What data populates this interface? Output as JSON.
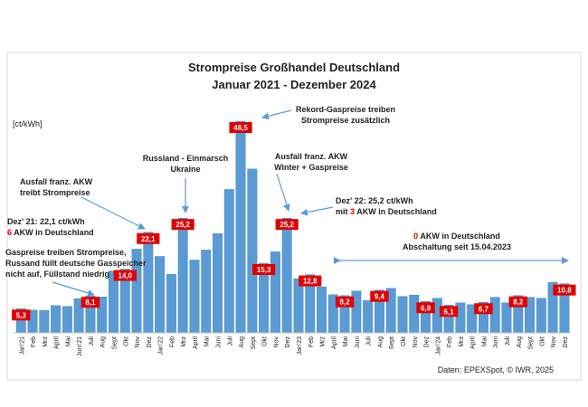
{
  "chart_data": {
    "type": "bar",
    "title": "Strompreise Großhandel Deutschland",
    "subtitle": "Januar 2021 - Dezember 2024",
    "ylabel": "[ct/kWh]",
    "xlabel": "",
    "ylim": [
      0,
      50
    ],
    "grid": false,
    "source": "Daten: EPEXSpot, © IWR, 2025",
    "categories": [
      "Jan'21",
      "Feb",
      "Mrz",
      "April",
      "Mai",
      "Juni'21",
      "Juli",
      "Aug",
      "Sept",
      "Okt",
      "Nov",
      "Dez",
      "Jan'22",
      "Feb",
      "Mrz",
      "April",
      "Mai",
      "Juni",
      "Juli",
      "Aug",
      "Sept",
      "Okt",
      "Nov",
      "Dez",
      "Jan'23",
      "Feb",
      "Mrz",
      "April",
      "Mai",
      "Juni",
      "Juli",
      "Aug",
      "Sept",
      "Okt",
      "Nov",
      "Dez",
      "Jan'24",
      "Feb",
      "Mrz",
      "April",
      "Mai",
      "Juni",
      "Juli",
      "Aug",
      "Sept",
      "Okt",
      "Nov",
      "Dez"
    ],
    "values": [
      5.3,
      5.0,
      4.9,
      6.0,
      5.8,
      7.5,
      8.1,
      7.9,
      13.6,
      14.0,
      18.4,
      22.1,
      16.8,
      12.9,
      25.2,
      16.0,
      18.2,
      21.8,
      31.5,
      46.5,
      36.0,
      15.3,
      17.8,
      25.2,
      11.9,
      12.8,
      10.1,
      8.4,
      8.2,
      9.2,
      7.1,
      9.4,
      9.8,
      8.0,
      8.3,
      6.9,
      7.6,
      6.1,
      6.6,
      6.2,
      6.7,
      7.8,
      6.6,
      8.2,
      7.8,
      7.6,
      11.1,
      10.8
    ],
    "value_labels": [
      {
        "index": 0,
        "text": "5,3"
      },
      {
        "index": 6,
        "text": "8,1"
      },
      {
        "index": 9,
        "text": "14,0"
      },
      {
        "index": 11,
        "text": "22,1"
      },
      {
        "index": 14,
        "text": "25,2"
      },
      {
        "index": 19,
        "text": "46,5"
      },
      {
        "index": 21,
        "text": "15,3"
      },
      {
        "index": 23,
        "text": "25,2"
      },
      {
        "index": 25,
        "text": "12,8"
      },
      {
        "index": 28,
        "text": "8,2"
      },
      {
        "index": 31,
        "text": "9,4"
      },
      {
        "index": 35,
        "text": "6,9"
      },
      {
        "index": 37,
        "text": "6,1"
      },
      {
        "index": 40,
        "text": "6,7"
      },
      {
        "index": 43,
        "text": "8,2"
      },
      {
        "index": 47,
        "text": "10,8"
      }
    ],
    "annotations": [
      {
        "name": "gaspreise",
        "lines": [
          {
            "text": "Gaspreise treiben Strompreise,"
          },
          {
            "text": "Russand füllt deutsche Gasspeicher"
          },
          {
            "text": "nicht auf, Füllstand niedrig"
          }
        ]
      },
      {
        "name": "dez21",
        "lines": [
          {
            "text": "Dez' 21: 22,1 ct/kWh"
          },
          {
            "pre": "",
            "highlight": "6",
            "post": " AKW in Deutschland"
          }
        ]
      },
      {
        "name": "ausfall-akw-1",
        "lines": [
          {
            "text": "Ausfall franz. AKW"
          },
          {
            "text": "treibt Strompreise"
          }
        ]
      },
      {
        "name": "russland",
        "lines": [
          {
            "text": "Russland - Einmarsch"
          },
          {
            "text": "Ukraine"
          }
        ]
      },
      {
        "name": "rekord",
        "lines": [
          {
            "text": "Rekord-Gaspreise treiben"
          },
          {
            "text": "Strompreise zusätzlich"
          }
        ]
      },
      {
        "name": "ausfall-akw-2",
        "lines": [
          {
            "text": "Ausfall franz. AKW"
          },
          {
            "text": "Winter + Gaspreise"
          }
        ]
      },
      {
        "name": "dez22",
        "lines": [
          {
            "text": "Dez' 22: 25,2 ct/kWh"
          },
          {
            "pre": "mit ",
            "highlight": "3",
            "post": " AKW in Deutschland"
          }
        ]
      },
      {
        "name": "null-akw",
        "lines": [
          {
            "pre": "",
            "highlight": "0",
            "post": " AKW in Deutschland"
          },
          {
            "text": "Abschaltung seit 15.04.2023"
          }
        ]
      }
    ],
    "colors": {
      "bar": "#5b9bd5",
      "bar_edge": "#3f7fbf",
      "label_box": "#e00000",
      "label_text": "#ffffff",
      "highlight": "#e00000",
      "arrow": "#5b9bd5"
    }
  }
}
